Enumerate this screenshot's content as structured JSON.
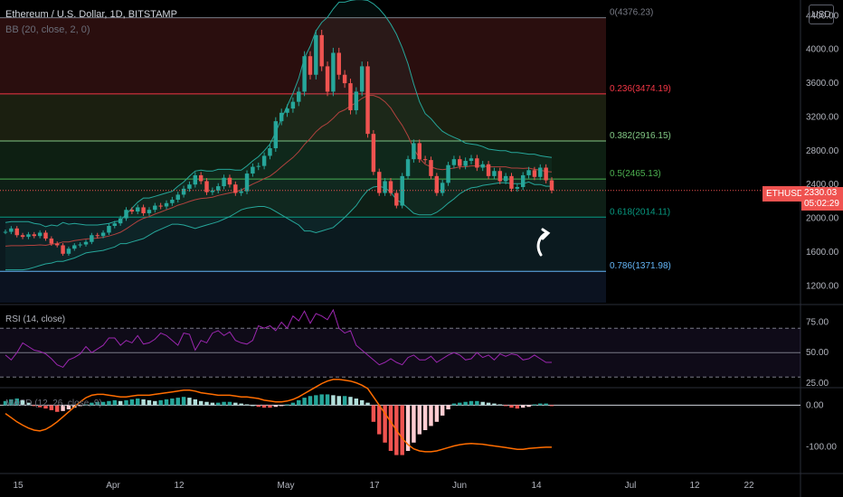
{
  "header": {
    "title": "Ethereum / U.S. Dollar, 1D, BITSTAMP",
    "indicator": "BB (20, close, 2, 0)",
    "currency": "USD"
  },
  "last_price": {
    "symbol": "ETHUSD",
    "value": "2330.03",
    "countdown": "05:02:29"
  },
  "panes": {
    "rsi_label": "RSI (14, close)",
    "macd_label": "MACD (12, 26, close, 9)"
  },
  "colors": {
    "up": "#26a69a",
    "down": "#ef5350",
    "bb": "#26a69a",
    "bb_basis": "#b2423e",
    "rsi": "#9c27b0",
    "fib_0": "#787b86",
    "fib_236": "#f23645",
    "fib_382": "#81c784",
    "fib_5": "#4caf50",
    "fib_618": "#089981",
    "fib_786": "#64b5f6"
  },
  "chart_data": [
    {
      "type": "candlestick",
      "title": "Ethereum / U.S. Dollar, 1D, BITSTAMP",
      "y_ticks": [
        1200,
        1600,
        2000,
        2400,
        2800,
        3200,
        3600,
        4000,
        4400
      ],
      "y_tick_labels": [
        "1200.00",
        "1600.00",
        "2000.00",
        "2400.00",
        "2800.00",
        "3200.00",
        "3600.00",
        "4000.00",
        "4400.00"
      ],
      "ylim": [
        1000,
        4500
      ],
      "x_tick_labels": [
        "15",
        "Apr",
        "12",
        "May",
        "17",
        "Jun",
        "14",
        "Jul",
        "12",
        "22"
      ],
      "fib_levels": [
        {
          "label": "0(4376.23)",
          "value": 4376.23
        },
        {
          "label": "0.236(3474.19)",
          "value": 3474.19
        },
        {
          "label": "0.382(2916.15)",
          "value": 2916.15
        },
        {
          "label": "0.5(2465.13)",
          "value": 2465.13
        },
        {
          "label": "0.618(2014.11)",
          "value": 2014.11
        },
        {
          "label": "0.786(1371.98)",
          "value": 1371.98
        }
      ],
      "last_price": 2330.03,
      "closes": [
        1840,
        1880,
        1800,
        1780,
        1810,
        1790,
        1830,
        1760,
        1700,
        1680,
        1580,
        1640,
        1680,
        1690,
        1720,
        1800,
        1790,
        1830,
        1910,
        1940,
        2000,
        2100,
        2080,
        2130,
        2060,
        2100,
        2150,
        2140,
        2180,
        2220,
        2280,
        2350,
        2400,
        2510,
        2440,
        2310,
        2330,
        2380,
        2480,
        2400,
        2300,
        2320,
        2530,
        2610,
        2620,
        2740,
        2830,
        3150,
        3250,
        3300,
        3380,
        3500,
        3920,
        3700,
        4170,
        3800,
        3500,
        3960,
        3700,
        3600,
        3280,
        3500,
        3800,
        3000,
        2550,
        2300,
        2440,
        2300,
        2150,
        2500,
        2700,
        2890,
        2700,
        2690,
        2500,
        2300,
        2420,
        2630,
        2700,
        2620,
        2680,
        2710,
        2600,
        2640,
        2500,
        2560,
        2440,
        2500,
        2350,
        2370,
        2510,
        2570,
        2490,
        2600,
        2450,
        2330
      ],
      "bb_upper": [
        1950,
        1960,
        1960,
        1960,
        1960,
        1940,
        1930,
        1900,
        1920,
        1910,
        1950,
        1930,
        1940,
        1930,
        1920,
        1920,
        1920,
        1930,
        1940,
        1960,
        1970,
        2050,
        2120,
        2190,
        2240,
        2240,
        2260,
        2280,
        2300,
        2320,
        2380,
        2430,
        2500,
        2560,
        2570,
        2560,
        2560,
        2580,
        2580,
        2580,
        2570,
        2570,
        2620,
        2680,
        2730,
        2800,
        2880,
        3020,
        3180,
        3330,
        3480,
        3660,
        3900,
        4040,
        4220,
        4320,
        4380,
        4480,
        4560,
        4560,
        4580,
        4590,
        4590,
        4580,
        4540,
        4480,
        4400,
        4300,
        4180,
        4020,
        3830,
        3590,
        3380,
        3240,
        3180,
        3100,
        3030,
        2990,
        2960,
        2930,
        2890,
        2880,
        2870,
        2850,
        2820,
        2810,
        2800,
        2800,
        2780,
        2780,
        2770,
        2760,
        2760,
        2740,
        2730,
        2720
      ],
      "bb_lower": [
        1390,
        1390,
        1390,
        1390,
        1400,
        1420,
        1440,
        1460,
        1470,
        1490,
        1490,
        1510,
        1530,
        1560,
        1590,
        1600,
        1610,
        1620,
        1640,
        1660,
        1700,
        1700,
        1720,
        1740,
        1760,
        1800,
        1840,
        1870,
        1900,
        1930,
        1930,
        1920,
        1900,
        1880,
        1900,
        1920,
        1940,
        1960,
        1990,
        2020,
        2060,
        2100,
        2120,
        2130,
        2140,
        2140,
        2120,
        2080,
        2040,
        2000,
        1960,
        1920,
        1850,
        1850,
        1830,
        1850,
        1870,
        1890,
        1950,
        2010,
        2080,
        2150,
        2250,
        2330,
        2370,
        2380,
        2360,
        2310,
        2220,
        2180,
        2120,
        2060,
        2040,
        2040,
        2040,
        2070,
        2120,
        2180,
        2230,
        2290,
        2330,
        2360,
        2370,
        2390,
        2400,
        2410,
        2420,
        2420,
        2410,
        2410,
        2410,
        2430,
        2400,
        2400,
        2380,
        2380
      ]
    },
    {
      "type": "line",
      "title": "RSI (14, close)",
      "y_ticks": [
        25,
        50,
        75
      ],
      "y_tick_labels": [
        "25.00",
        "50.00",
        "75.00"
      ],
      "ylim": [
        22,
        85
      ],
      "bands": [
        30,
        50,
        70
      ],
      "values": [
        48,
        44,
        50,
        58,
        55,
        52,
        51,
        49,
        45,
        40,
        38,
        44,
        46,
        49,
        55,
        50,
        53,
        56,
        62,
        62,
        56,
        60,
        58,
        64,
        57,
        58,
        61,
        66,
        64,
        60,
        56,
        66,
        65,
        52,
        60,
        58,
        66,
        68,
        64,
        67,
        60,
        58,
        57,
        60,
        72,
        70,
        72,
        68,
        75,
        70,
        80,
        76,
        84,
        74,
        82,
        80,
        77,
        85,
        70,
        66,
        68,
        56,
        52,
        48,
        44,
        40,
        42,
        45,
        42,
        40,
        46,
        48,
        44,
        44,
        47,
        42,
        45,
        48,
        50,
        48,
        44,
        45,
        50,
        46,
        48,
        44,
        49,
        47,
        49,
        48,
        44,
        45,
        48,
        45,
        42,
        42
      ]
    },
    {
      "type": "bar",
      "title": "MACD (12, 26, close, 9)",
      "y_ticks": [
        0,
        -100
      ],
      "y_tick_labels": [
        "0.00",
        "-100.00"
      ],
      "ylim": [
        -160,
        40
      ],
      "histogram": [
        10,
        14,
        16,
        12,
        6,
        -2,
        -5,
        -8,
        -12,
        -16,
        -14,
        -10,
        -6,
        -2,
        2,
        6,
        8,
        8,
        10,
        12,
        10,
        12,
        14,
        16,
        14,
        12,
        10,
        12,
        14,
        16,
        18,
        20,
        18,
        14,
        10,
        8,
        6,
        6,
        8,
        8,
        6,
        4,
        2,
        0,
        -4,
        -6,
        -6,
        -4,
        -2,
        2,
        6,
        12,
        18,
        22,
        24,
        26,
        26,
        24,
        22,
        22,
        20,
        16,
        12,
        6,
        -40,
        -70,
        -90,
        -110,
        -120,
        -120,
        -110,
        -90,
        -70,
        -60,
        -50,
        -40,
        -25,
        -10,
        4,
        6,
        8,
        10,
        10,
        8,
        6,
        4,
        2,
        -2,
        -6,
        -8,
        -6,
        -4,
        2,
        4,
        4,
        -2
      ],
      "signal": [
        -20,
        -30,
        -40,
        -48,
        -55,
        -60,
        -62,
        -58,
        -50,
        -40,
        -28,
        -16,
        -4,
        8,
        18,
        24,
        26,
        26,
        24,
        22,
        20,
        20,
        22,
        24,
        24,
        24,
        26,
        28,
        30,
        32,
        34,
        36,
        36,
        34,
        30,
        28,
        26,
        24,
        24,
        24,
        22,
        20,
        20,
        18,
        16,
        12,
        10,
        8,
        8,
        10,
        14,
        20,
        28,
        36,
        44,
        52,
        58,
        62,
        62,
        60,
        58,
        54,
        48,
        40,
        20,
        0,
        -20,
        -40,
        -60,
        -80,
        -95,
        -105,
        -110,
        -112,
        -112,
        -110,
        -106,
        -102,
        -98,
        -95,
        -93,
        -92,
        -93,
        -94,
        -96,
        -98,
        -100,
        -102,
        -104,
        -106,
        -106,
        -104,
        -103,
        -102,
        -101,
        -101
      ]
    }
  ]
}
